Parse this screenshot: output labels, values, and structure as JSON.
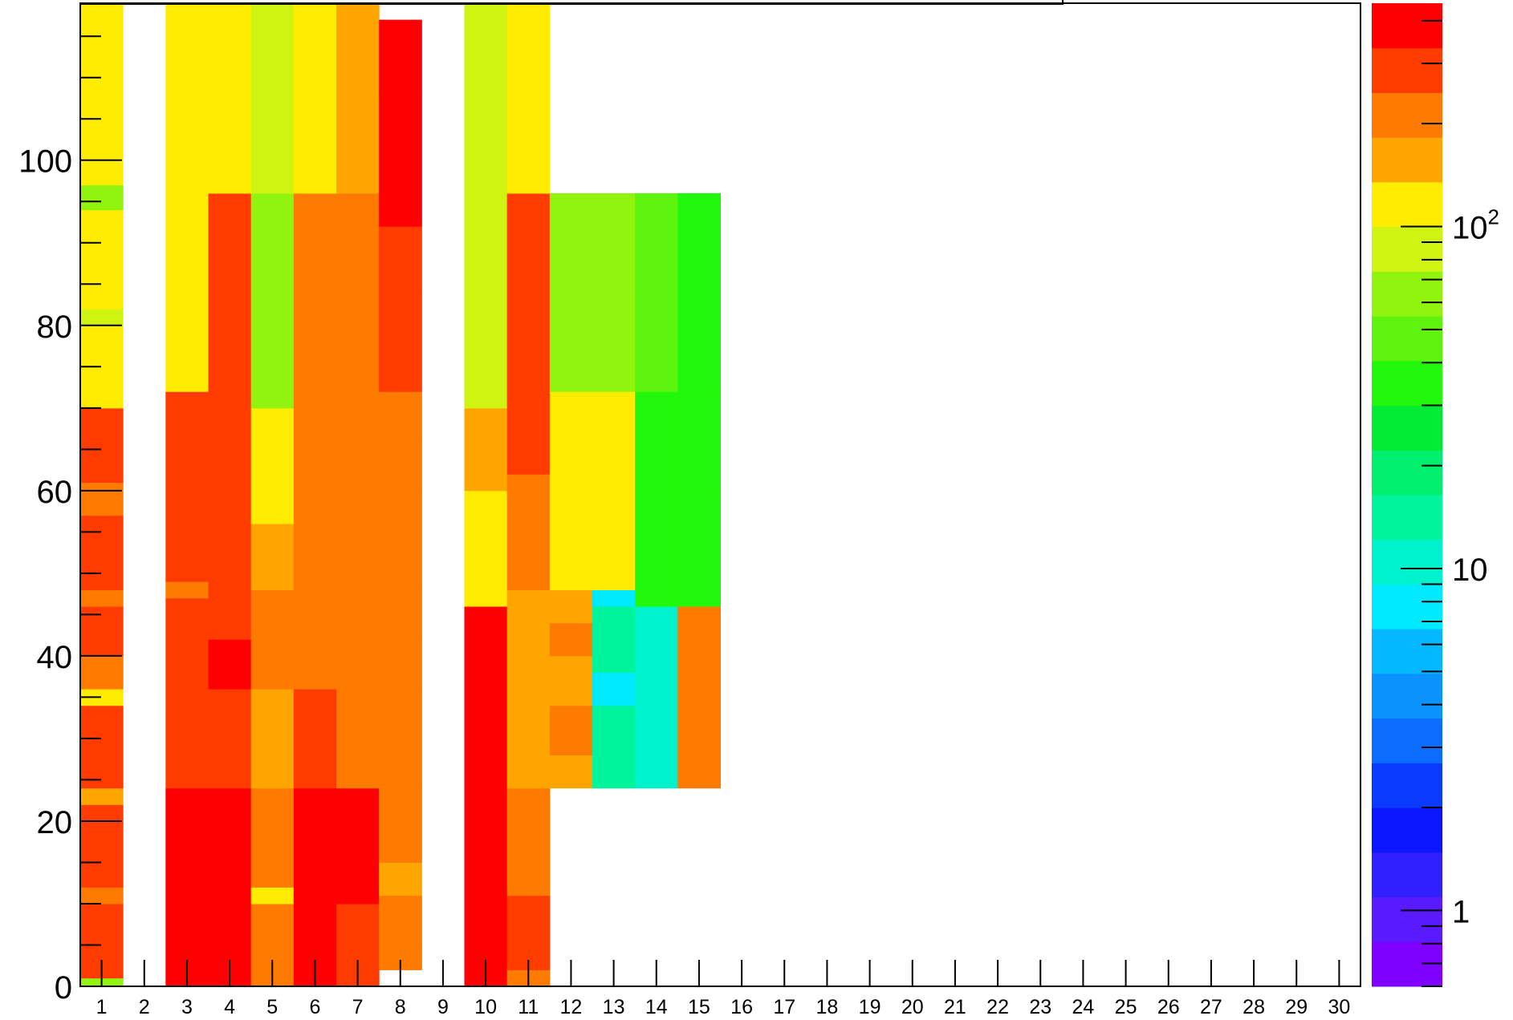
{
  "chart_data": {
    "type": "heatmap",
    "title": "",
    "xlabel": "",
    "ylabel": "",
    "x_categories": [
      "1",
      "2",
      "3",
      "4",
      "5",
      "6",
      "7",
      "8",
      "9",
      "10",
      "11",
      "12",
      "13",
      "14",
      "15",
      "16",
      "17",
      "18",
      "19",
      "20",
      "21",
      "22",
      "23",
      "24",
      "25",
      "26",
      "27",
      "28",
      "29",
      "30"
    ],
    "y_tick_labels": [
      "0",
      "20",
      "40",
      "60",
      "80",
      "100"
    ],
    "y_tick_values": [
      0,
      20,
      40,
      60,
      80,
      100
    ],
    "ylim": [
      0,
      119
    ],
    "z_scale": "log",
    "z_range": [
      0.6,
      450
    ],
    "z_tick_labels": [
      "1",
      "10",
      "10^2"
    ],
    "z_tick_values": [
      1,
      10,
      100
    ],
    "palette": [
      "#7f00ff",
      "#5a1aff",
      "#3020ff",
      "#0b16ff",
      "#0a3aff",
      "#0c6cff",
      "#0a93ff",
      "#04b8ff",
      "#00eaff",
      "#00f2cc",
      "#00f49b",
      "#00ef6d",
      "#00eb33",
      "#22f80b",
      "#5ef40f",
      "#90f40f",
      "#cff411",
      "#ffec00",
      "#ffa500",
      "#ff7a00",
      "#ff3b00",
      "#ff0000"
    ],
    "columns": [
      {
        "x": 1,
        "value_segments": [
          [
            0,
            1,
            55
          ],
          [
            1,
            10,
            300
          ],
          [
            10,
            12,
            210
          ],
          [
            12,
            22,
            300
          ],
          [
            22,
            24,
            150
          ],
          [
            24,
            34,
            300
          ],
          [
            34,
            36,
            130
          ],
          [
            36,
            40,
            200
          ],
          [
            40,
            46,
            300
          ],
          [
            46,
            48,
            220
          ],
          [
            48,
            57,
            300
          ],
          [
            57,
            61,
            220
          ],
          [
            61,
            70,
            300
          ],
          [
            70,
            80,
            130
          ],
          [
            80,
            82,
            80
          ],
          [
            82,
            94,
            120
          ],
          [
            94,
            97,
            70
          ],
          [
            97,
            119,
            110
          ]
        ]
      },
      {
        "x": 3,
        "value_segments": [
          [
            0,
            4,
            420
          ],
          [
            4,
            10,
            470
          ],
          [
            10,
            14,
            380
          ],
          [
            14,
            24,
            470
          ],
          [
            24,
            34,
            290
          ],
          [
            34,
            47,
            300
          ],
          [
            47,
            49,
            220
          ],
          [
            49,
            72,
            300
          ],
          [
            72,
            96,
            130
          ],
          [
            96,
            119,
            110
          ]
        ]
      },
      {
        "x": 4,
        "value_segments": [
          [
            0,
            10,
            470
          ],
          [
            10,
            24,
            470
          ],
          [
            24,
            36,
            310
          ],
          [
            36,
            42,
            380
          ],
          [
            42,
            49,
            300
          ],
          [
            49,
            57,
            300
          ],
          [
            57,
            65,
            330
          ],
          [
            65,
            72,
            300
          ],
          [
            72,
            96,
            300
          ],
          [
            96,
            119,
            120
          ]
        ]
      },
      {
        "x": 5,
        "value_segments": [
          [
            0,
            10,
            220
          ],
          [
            10,
            12,
            130
          ],
          [
            12,
            24,
            220
          ],
          [
            24,
            36,
            180
          ],
          [
            36,
            48,
            200
          ],
          [
            48,
            56,
            140
          ],
          [
            56,
            70,
            120
          ],
          [
            70,
            96,
            70
          ],
          [
            96,
            119,
            80
          ]
        ]
      },
      {
        "x": 6,
        "value_segments": [
          [
            0,
            24,
            420
          ],
          [
            24,
            36,
            250
          ],
          [
            36,
            48,
            220
          ],
          [
            48,
            62,
            230
          ],
          [
            62,
            72,
            220
          ],
          [
            72,
            96,
            200
          ],
          [
            96,
            119,
            100
          ]
        ]
      },
      {
        "x": 7,
        "value_segments": [
          [
            0,
            10,
            300
          ],
          [
            10,
            14,
            380
          ],
          [
            14,
            24,
            380
          ],
          [
            24,
            36,
            240
          ],
          [
            36,
            48,
            220
          ],
          [
            48,
            60,
            220
          ],
          [
            60,
            72,
            200
          ],
          [
            72,
            96,
            200
          ],
          [
            96,
            119,
            180
          ]
        ]
      },
      {
        "x": 8,
        "value_segments": [
          [
            2,
            5,
            240
          ],
          [
            5,
            11,
            200
          ],
          [
            11,
            15,
            150
          ],
          [
            15,
            24,
            220
          ],
          [
            24,
            36,
            200
          ],
          [
            36,
            42,
            220
          ],
          [
            42,
            48,
            200
          ],
          [
            48,
            60,
            220
          ],
          [
            60,
            66,
            200
          ],
          [
            66,
            72,
            220
          ],
          [
            72,
            84,
            300
          ],
          [
            84,
            92,
            300
          ],
          [
            92,
            108,
            380
          ],
          [
            108,
            117,
            380
          ]
        ]
      },
      {
        "x": 10,
        "value_segments": [
          [
            0,
            4,
            470
          ],
          [
            4,
            14,
            380
          ],
          [
            14,
            17,
            470
          ],
          [
            17,
            24,
            380
          ],
          [
            24,
            36,
            380
          ],
          [
            36,
            46,
            380
          ],
          [
            46,
            60,
            130
          ],
          [
            60,
            70,
            160
          ],
          [
            70,
            96,
            90
          ],
          [
            96,
            119,
            80
          ]
        ]
      },
      {
        "x": 11,
        "value_segments": [
          [
            0,
            2,
            240
          ],
          [
            2,
            11,
            300
          ],
          [
            11,
            24,
            220
          ],
          [
            24,
            36,
            150
          ],
          [
            36,
            48,
            140
          ],
          [
            48,
            62,
            220
          ],
          [
            62,
            72,
            260
          ],
          [
            72,
            96,
            300
          ],
          [
            96,
            119,
            100
          ]
        ]
      },
      {
        "x": 12,
        "value_segments": [
          [
            24,
            28,
            140
          ],
          [
            28,
            34,
            220
          ],
          [
            34,
            40,
            150
          ],
          [
            40,
            44,
            220
          ],
          [
            44,
            48,
            140
          ],
          [
            48,
            60,
            110
          ],
          [
            60,
            72,
            110
          ],
          [
            72,
            84,
            70
          ],
          [
            84,
            96,
            55
          ]
        ]
      },
      {
        "x": 13,
        "value_segments": [
          [
            24,
            34,
            13
          ],
          [
            34,
            38,
            7
          ],
          [
            38,
            46,
            13
          ],
          [
            46,
            48,
            7
          ],
          [
            48,
            60,
            110
          ],
          [
            60,
            72,
            100
          ],
          [
            72,
            84,
            70
          ],
          [
            84,
            96,
            55
          ]
        ]
      },
      {
        "x": 14,
        "value_segments": [
          [
            24,
            46,
            10
          ],
          [
            46,
            60,
            30
          ],
          [
            60,
            72,
            30
          ],
          [
            72,
            84,
            45
          ],
          [
            84,
            96,
            45
          ]
        ]
      },
      {
        "x": 15,
        "value_segments": [
          [
            24,
            36,
            220
          ],
          [
            36,
            46,
            240
          ],
          [
            46,
            60,
            40
          ],
          [
            60,
            72,
            40
          ],
          [
            72,
            84,
            38
          ],
          [
            84,
            96,
            38
          ]
        ]
      }
    ]
  }
}
